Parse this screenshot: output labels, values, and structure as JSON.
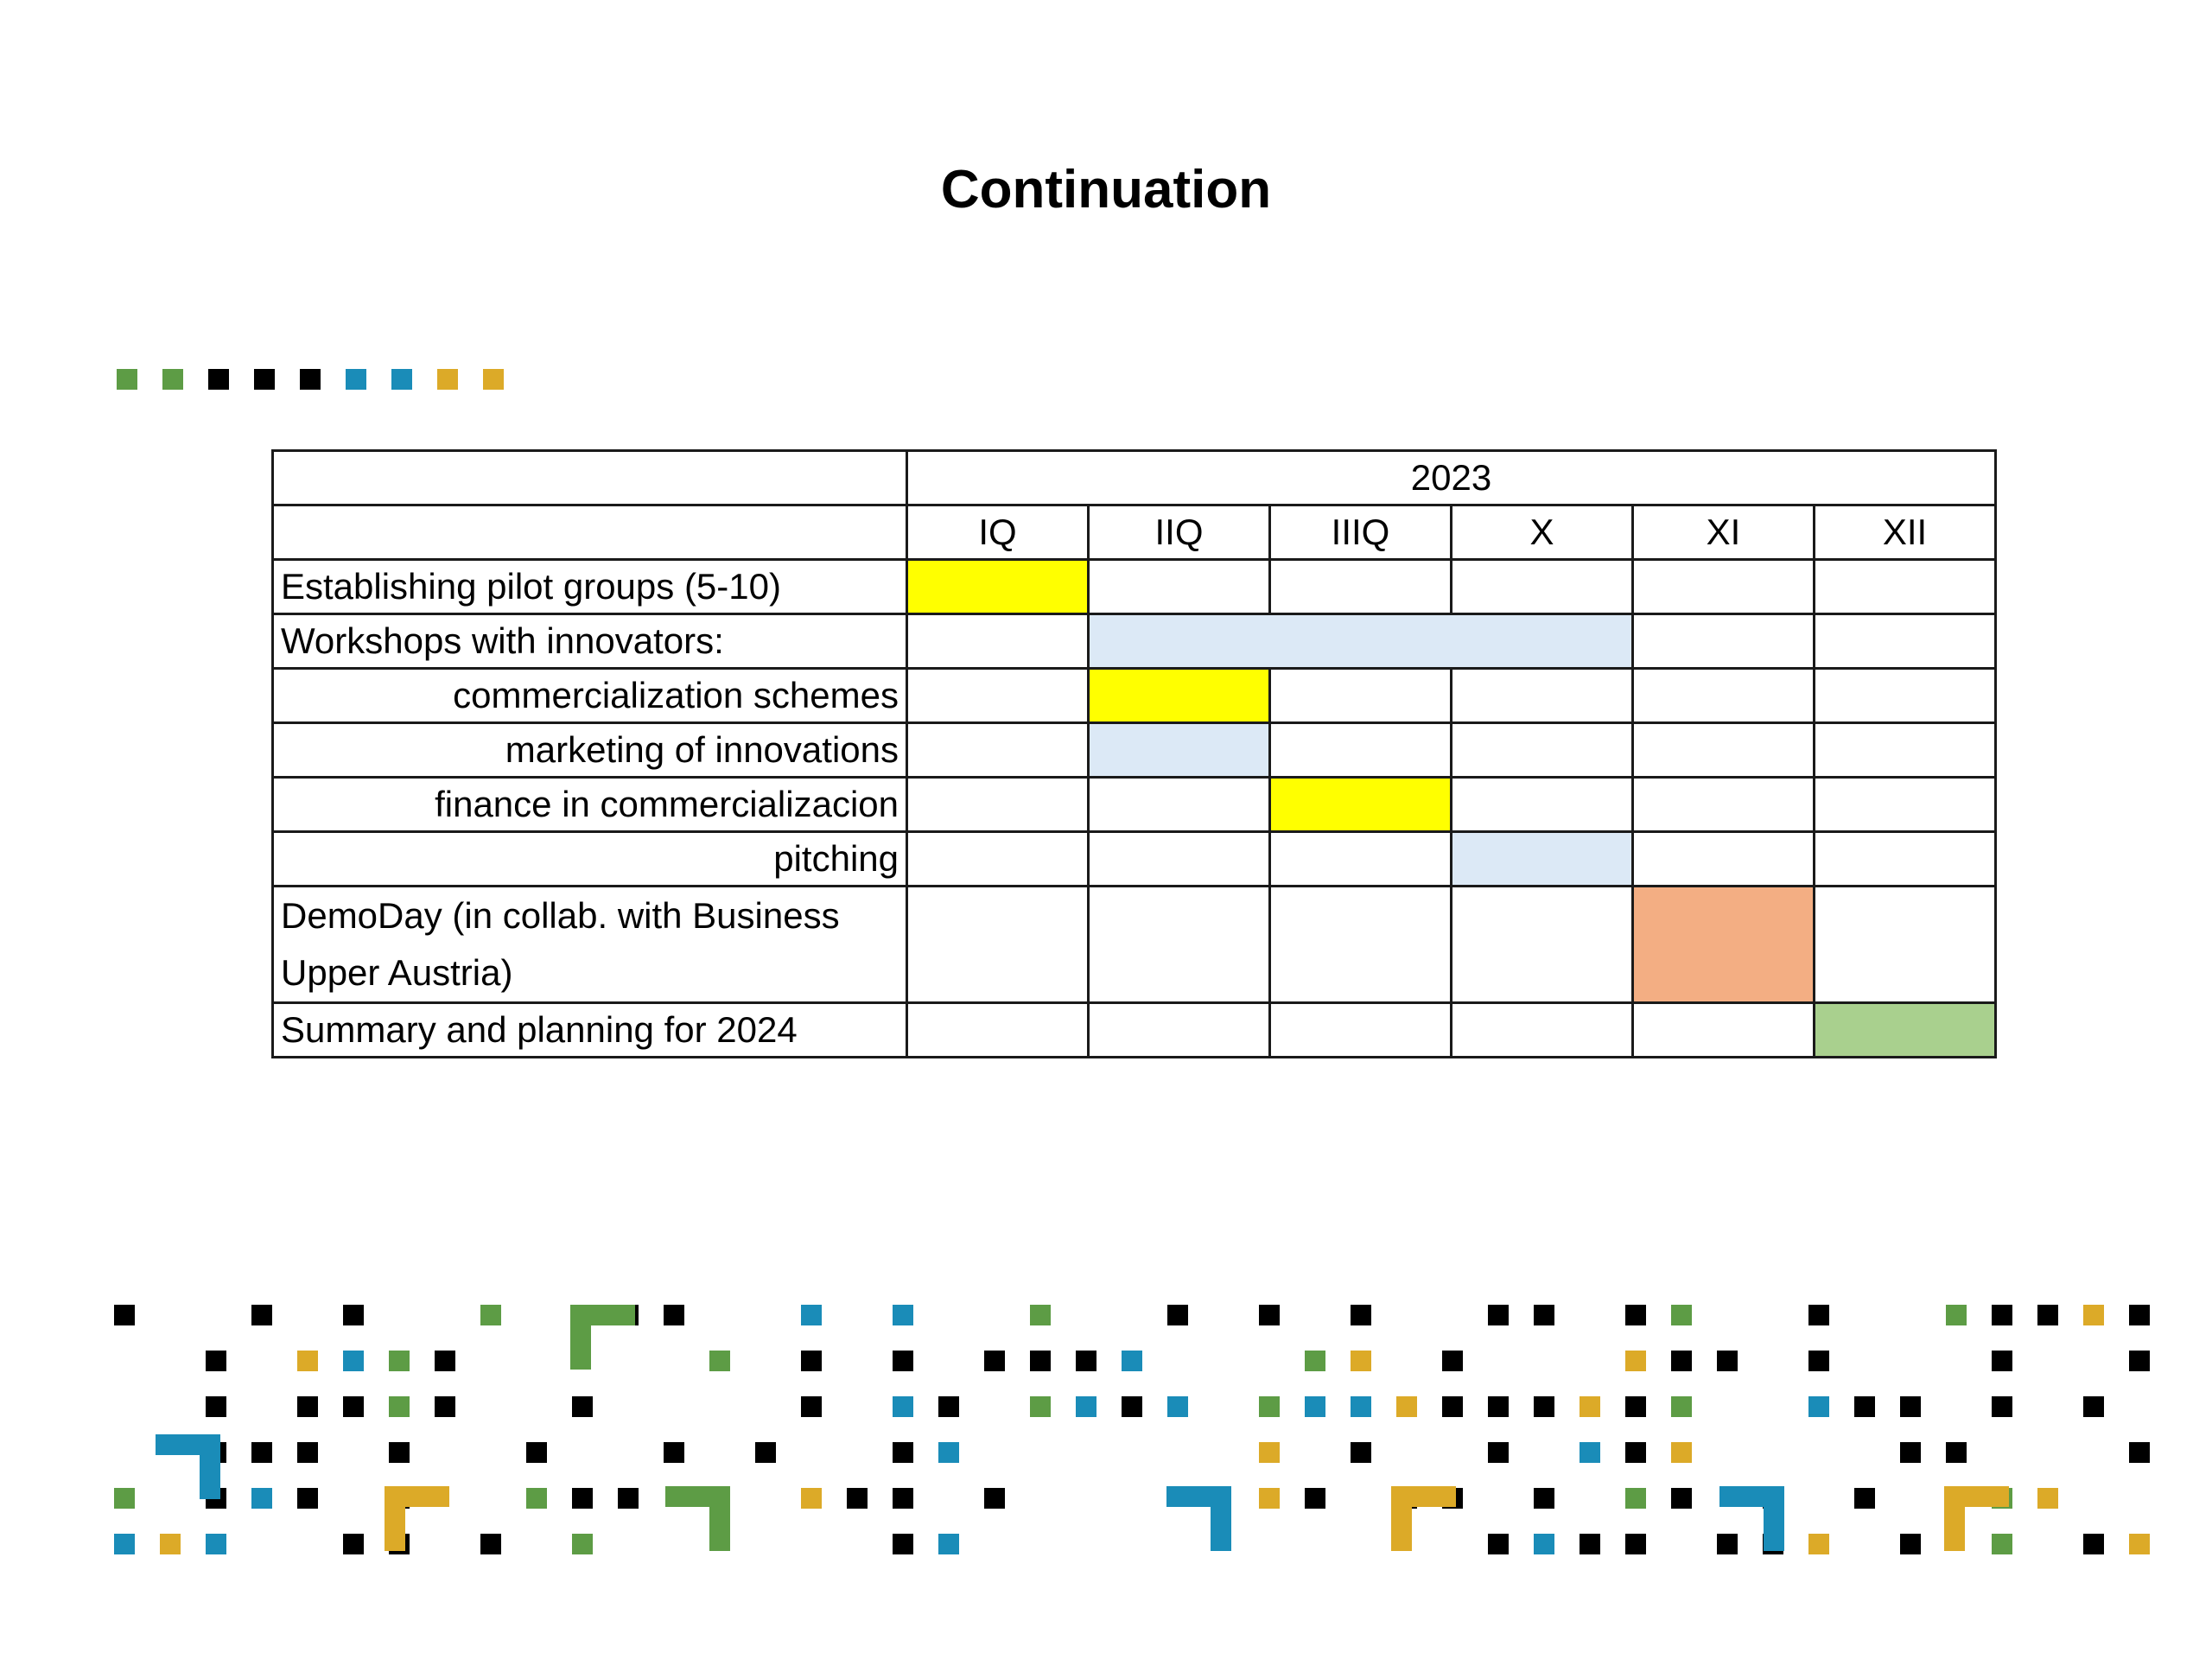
{
  "title": "Continuation",
  "colors": {
    "yellow": "#ffff00",
    "light_blue": "#dce9f6",
    "orange": "#f3ae83",
    "green": "#a9d08e",
    "deco_green": "#5d9c45",
    "deco_blue": "#1a8cb8",
    "deco_gold": "#dcaa28",
    "deco_black": "#000000"
  },
  "schedule": {
    "year": "2023",
    "periods": [
      "IQ",
      "IIQ",
      "IIIQ",
      "X",
      "XI",
      "XII"
    ],
    "rows": [
      {
        "label": "Establishing pilot groups (5-10)",
        "indent": false,
        "bar": {
          "start": 0,
          "span": 1,
          "color": "yellow"
        }
      },
      {
        "label": "Workshops with innovators:",
        "indent": false,
        "bar": {
          "start": 1,
          "span": 3,
          "color": "light_blue"
        }
      },
      {
        "label": "commercialization schemes",
        "indent": true,
        "bar": {
          "start": 1,
          "span": 1,
          "color": "yellow"
        }
      },
      {
        "label": "marketing of innovations",
        "indent": true,
        "bar": {
          "start": 1,
          "span": 1,
          "color": "light_blue"
        }
      },
      {
        "label": "finance in commercializacion",
        "indent": true,
        "bar": {
          "start": 2,
          "span": 1,
          "color": "yellow"
        }
      },
      {
        "label": "pitching",
        "indent": true,
        "bar": {
          "start": 3,
          "span": 1,
          "color": "light_blue"
        }
      },
      {
        "label": "DemoDay (in collab. with Business Upper Austria)",
        "indent": false,
        "bar": {
          "start": 4,
          "span": 1,
          "color": "orange"
        }
      },
      {
        "label": "Summary and planning for 2024",
        "indent": false,
        "bar": {
          "start": 5,
          "span": 1,
          "color": "green"
        }
      }
    ]
  },
  "decorations": {
    "top_squares": [
      "green",
      "green",
      "black",
      "black",
      "black",
      "blue",
      "blue",
      "gold",
      "gold"
    ],
    "bottom_pattern": "colored-square-grid"
  }
}
